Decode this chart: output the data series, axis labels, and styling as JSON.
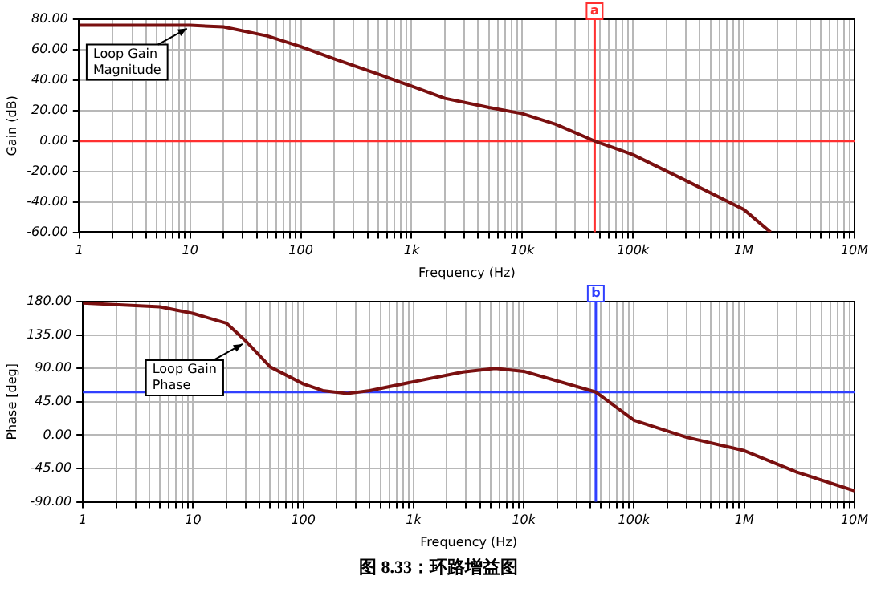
{
  "chart_data": [
    {
      "type": "line",
      "xlabel": "Frequency (Hz)",
      "ylabel": "Gain (dB)",
      "log": "x",
      "grid": true,
      "legend": false,
      "marker": "none",
      "line_style": "solid",
      "xlim": [
        1,
        10000000
      ],
      "xticks": [
        {
          "value": 1,
          "label": "1"
        },
        {
          "value": 2,
          "label": null
        },
        {
          "value": 3,
          "label": null
        },
        {
          "value": 4,
          "label": null
        },
        {
          "value": 5,
          "label": null
        },
        {
          "value": 6,
          "label": null
        },
        {
          "value": 7,
          "label": null
        },
        {
          "value": 8,
          "label": null
        },
        {
          "value": 9,
          "label": null
        },
        {
          "value": 10,
          "label": "10"
        },
        {
          "value": 20,
          "label": null
        },
        {
          "value": 30,
          "label": null
        },
        {
          "value": 40,
          "label": null
        },
        {
          "value": 50,
          "label": null
        },
        {
          "value": 60,
          "label": null
        },
        {
          "value": 70,
          "label": null
        },
        {
          "value": 80,
          "label": null
        },
        {
          "value": 90,
          "label": null
        },
        {
          "value": 100,
          "label": "100"
        },
        {
          "value": 200,
          "label": null
        },
        {
          "value": 300,
          "label": null
        },
        {
          "value": 400,
          "label": null
        },
        {
          "value": 500,
          "label": null
        },
        {
          "value": 600,
          "label": null
        },
        {
          "value": 700,
          "label": null
        },
        {
          "value": 800,
          "label": null
        },
        {
          "value": 900,
          "label": null
        },
        {
          "value": 1000,
          "label": "1k"
        },
        {
          "value": 2000,
          "label": null
        },
        {
          "value": 3000,
          "label": null
        },
        {
          "value": 4000,
          "label": null
        },
        {
          "value": 5000,
          "label": null
        },
        {
          "value": 6000,
          "label": null
        },
        {
          "value": 7000,
          "label": null
        },
        {
          "value": 8000,
          "label": null
        },
        {
          "value": 9000,
          "label": null
        },
        {
          "value": 10000,
          "label": "10k"
        },
        {
          "value": 20000,
          "label": null
        },
        {
          "value": 30000,
          "label": null
        },
        {
          "value": 40000,
          "label": null
        },
        {
          "value": 50000,
          "label": null
        },
        {
          "value": 60000,
          "label": null
        },
        {
          "value": 70000,
          "label": null
        },
        {
          "value": 80000,
          "label": null
        },
        {
          "value": 90000,
          "label": null
        },
        {
          "value": 100000,
          "label": "100k"
        },
        {
          "value": 200000,
          "label": null
        },
        {
          "value": 300000,
          "label": null
        },
        {
          "value": 400000,
          "label": null
        },
        {
          "value": 500000,
          "label": null
        },
        {
          "value": 600000,
          "label": null
        },
        {
          "value": 700000,
          "label": null
        },
        {
          "value": 800000,
          "label": null
        },
        {
          "value": 900000,
          "label": null
        },
        {
          "value": 1000000,
          "label": "1M"
        },
        {
          "value": 2000000,
          "label": null
        },
        {
          "value": 3000000,
          "label": null
        },
        {
          "value": 4000000,
          "label": null
        },
        {
          "value": 5000000,
          "label": null
        },
        {
          "value": 6000000,
          "label": null
        },
        {
          "value": 7000000,
          "label": null
        },
        {
          "value": 8000000,
          "label": null
        },
        {
          "value": 9000000,
          "label": null
        },
        {
          "value": 10000000,
          "label": "10M"
        }
      ],
      "ylim": [
        -60,
        80
      ],
      "yticks": [
        {
          "value": -60,
          "label": "-60.00"
        },
        {
          "value": -40,
          "label": "-40.00"
        },
        {
          "value": -20,
          "label": "-20.00"
        },
        {
          "value": 0,
          "label": "0.00"
        },
        {
          "value": 20,
          "label": "20.00"
        },
        {
          "value": 40,
          "label": "40.00"
        },
        {
          "value": 60,
          "label": "60.00"
        },
        {
          "value": 80,
          "label": "80.00"
        }
      ],
      "series": [
        {
          "color": "#7a1010",
          "x": [
            1,
            10,
            20,
            50,
            100,
            200,
            500,
            1000,
            2000,
            5000,
            10000,
            20000,
            45000,
            100000,
            300000,
            1000000,
            1750000
          ],
          "values": [
            76,
            76,
            75,
            69,
            62,
            54,
            44,
            36,
            28,
            22,
            18,
            11,
            0,
            -9,
            -26,
            -45,
            -60
          ]
        }
      ],
      "ref_lines": [
        {
          "axis": "x",
          "value": 45000,
          "label": "a",
          "color": "#ff3030"
        },
        {
          "axis": "y",
          "value": 0,
          "label": null,
          "color": "#ff3030"
        }
      ],
      "annotations": [
        {
          "text": "Loop Gain Magnitude",
          "x": 10,
          "y": 76
        }
      ]
    },
    {
      "type": "line",
      "xlabel": "Frequency (Hz)",
      "ylabel": "Phase [deg]",
      "log": "x",
      "grid": true,
      "legend": false,
      "marker": "none",
      "line_style": "solid",
      "xlim": [
        1,
        10000000
      ],
      "xticks": [
        {
          "value": 1,
          "label": "1"
        },
        {
          "value": 2,
          "label": null
        },
        {
          "value": 3,
          "label": null
        },
        {
          "value": 4,
          "label": null
        },
        {
          "value": 5,
          "label": null
        },
        {
          "value": 6,
          "label": null
        },
        {
          "value": 7,
          "label": null
        },
        {
          "value": 8,
          "label": null
        },
        {
          "value": 9,
          "label": null
        },
        {
          "value": 10,
          "label": "10"
        },
        {
          "value": 20,
          "label": null
        },
        {
          "value": 30,
          "label": null
        },
        {
          "value": 40,
          "label": null
        },
        {
          "value": 50,
          "label": null
        },
        {
          "value": 60,
          "label": null
        },
        {
          "value": 70,
          "label": null
        },
        {
          "value": 80,
          "label": null
        },
        {
          "value": 90,
          "label": null
        },
        {
          "value": 100,
          "label": "100"
        },
        {
          "value": 200,
          "label": null
        },
        {
          "value": 300,
          "label": null
        },
        {
          "value": 400,
          "label": null
        },
        {
          "value": 500,
          "label": null
        },
        {
          "value": 600,
          "label": null
        },
        {
          "value": 700,
          "label": null
        },
        {
          "value": 800,
          "label": null
        },
        {
          "value": 900,
          "label": null
        },
        {
          "value": 1000,
          "label": "1k"
        },
        {
          "value": 2000,
          "label": null
        },
        {
          "value": 3000,
          "label": null
        },
        {
          "value": 4000,
          "label": null
        },
        {
          "value": 5000,
          "label": null
        },
        {
          "value": 6000,
          "label": null
        },
        {
          "value": 7000,
          "label": null
        },
        {
          "value": 8000,
          "label": null
        },
        {
          "value": 9000,
          "label": null
        },
        {
          "value": 10000,
          "label": "10k"
        },
        {
          "value": 20000,
          "label": null
        },
        {
          "value": 30000,
          "label": null
        },
        {
          "value": 40000,
          "label": null
        },
        {
          "value": 50000,
          "label": null
        },
        {
          "value": 60000,
          "label": null
        },
        {
          "value": 70000,
          "label": null
        },
        {
          "value": 80000,
          "label": null
        },
        {
          "value": 90000,
          "label": null
        },
        {
          "value": 100000,
          "label": "100k"
        },
        {
          "value": 200000,
          "label": null
        },
        {
          "value": 300000,
          "label": null
        },
        {
          "value": 400000,
          "label": null
        },
        {
          "value": 500000,
          "label": null
        },
        {
          "value": 600000,
          "label": null
        },
        {
          "value": 700000,
          "label": null
        },
        {
          "value": 800000,
          "label": null
        },
        {
          "value": 900000,
          "label": null
        },
        {
          "value": 1000000,
          "label": "1M"
        },
        {
          "value": 2000000,
          "label": null
        },
        {
          "value": 3000000,
          "label": null
        },
        {
          "value": 4000000,
          "label": null
        },
        {
          "value": 5000000,
          "label": null
        },
        {
          "value": 6000000,
          "label": null
        },
        {
          "value": 7000000,
          "label": null
        },
        {
          "value": 8000000,
          "label": null
        },
        {
          "value": 9000000,
          "label": null
        },
        {
          "value": 10000000,
          "label": "10M"
        }
      ],
      "ylim": [
        -90,
        180
      ],
      "yticks": [
        {
          "value": -90,
          "label": "-90.00"
        },
        {
          "value": -45,
          "label": "-45.00"
        },
        {
          "value": 0,
          "label": "0.00"
        },
        {
          "value": 45,
          "label": "45.00"
        },
        {
          "value": 90,
          "label": "90.00"
        },
        {
          "value": 135,
          "label": "135.00"
        },
        {
          "value": 180,
          "label": "180.00"
        }
      ],
      "series": [
        {
          "color": "#7a1010",
          "x": [
            1,
            5,
            10,
            20,
            30,
            50,
            100,
            150,
            250,
            400,
            1000,
            2800,
            5500,
            10000,
            45000,
            100000,
            300000,
            1000000,
            3000000,
            10000000
          ],
          "values": [
            178,
            173,
            164,
            151,
            127,
            92,
            69,
            60,
            56,
            60,
            72,
            85,
            90,
            86,
            58,
            20,
            -3,
            -21,
            -50,
            -75
          ]
        }
      ],
      "ref_lines": [
        {
          "axis": "x",
          "value": 45000,
          "label": "b",
          "color": "#3040ff"
        },
        {
          "axis": "y",
          "value": 58,
          "label": null,
          "color": "#3040ff"
        }
      ],
      "annotations": [
        {
          "text": "Loop Gain Phase",
          "x": 30,
          "y": 127
        },
        "图 8.33：环路增益图"
      ]
    }
  ]
}
